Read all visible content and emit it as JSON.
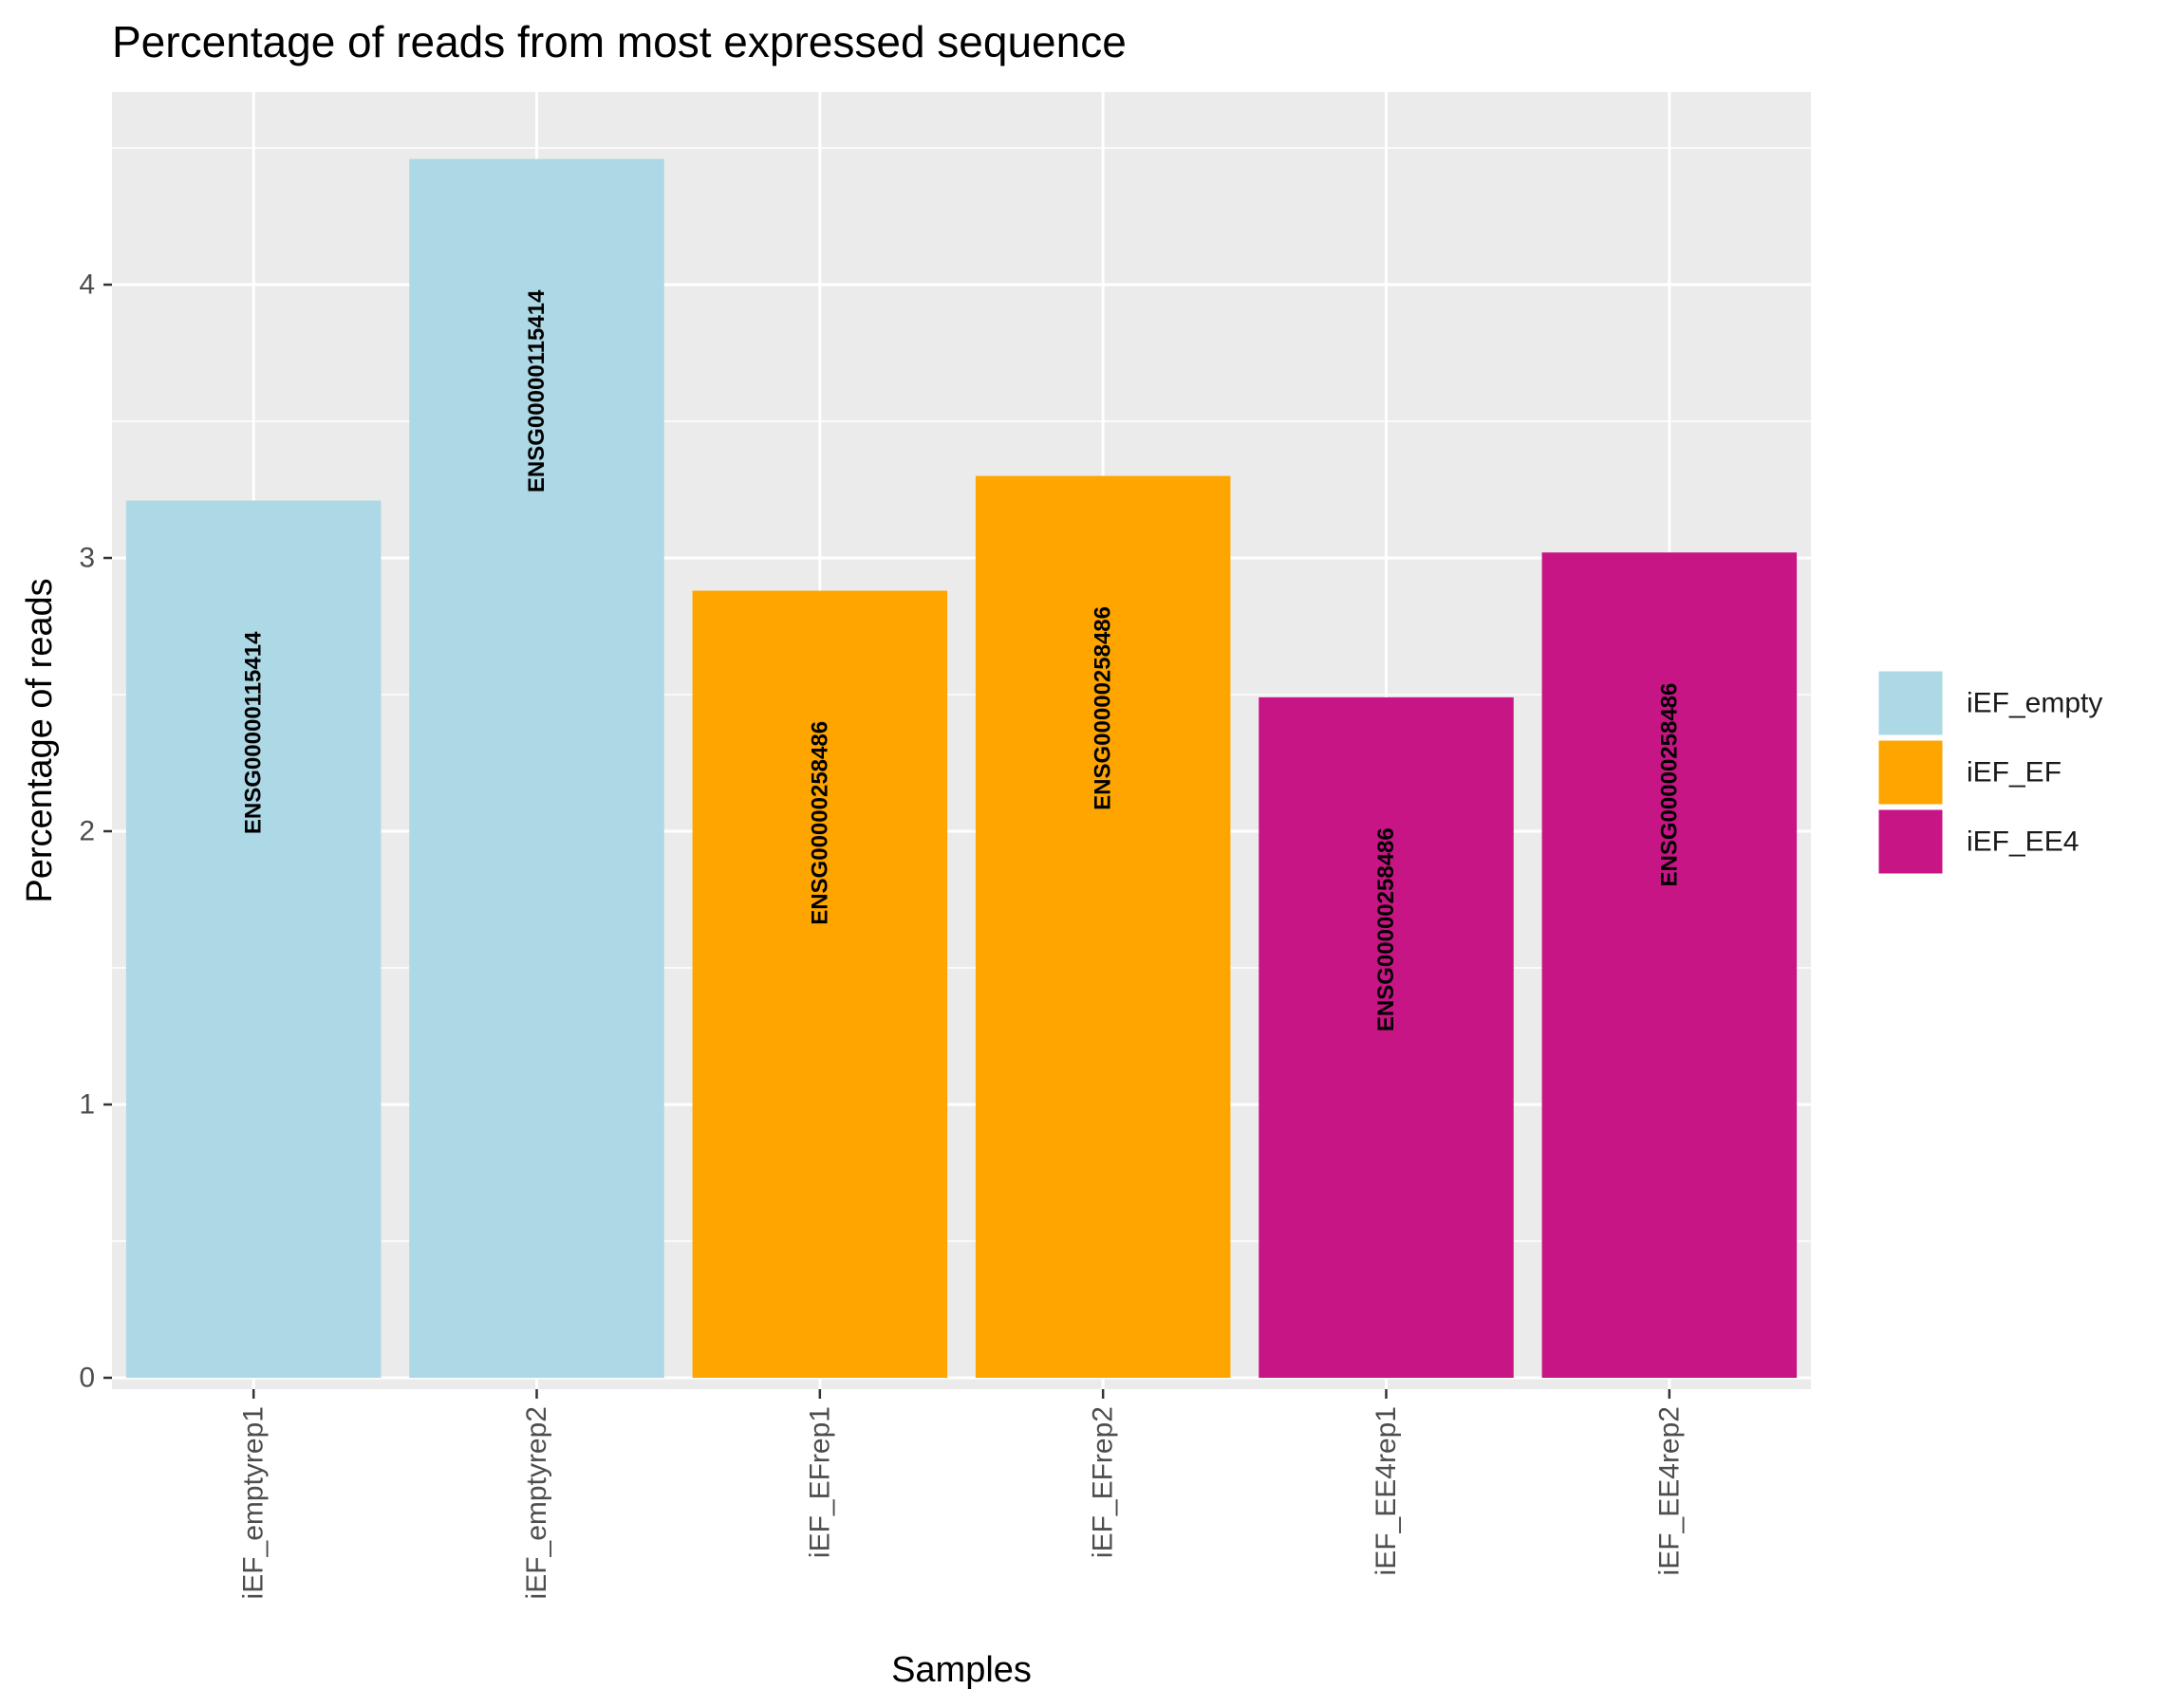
{
  "chart_data": {
    "type": "bar",
    "title": "Percentage of reads from most expressed sequence",
    "xlabel": "Samples",
    "ylabel": "Percentage of reads",
    "ylim": [
      0,
      4.68
    ],
    "yticks": [
      0,
      1,
      2,
      3,
      4
    ],
    "grid": true,
    "legend_position": "right",
    "categories": [
      "iEF_emptyrep1",
      "iEF_emptyrep2",
      "iEF_EFrep1",
      "iEF_EFrep2",
      "iEF_EE4rep1",
      "iEF_EE4rep2"
    ],
    "values": [
      3.21,
      4.46,
      2.88,
      3.3,
      2.49,
      3.02
    ],
    "bar_labels": [
      "ENSG00000115414",
      "ENSG00000115414",
      "ENSG00000258486",
      "ENSG00000258486",
      "ENSG00000258486",
      "ENSG00000258486"
    ],
    "groups": [
      "iEF_empty",
      "iEF_empty",
      "iEF_EF",
      "iEF_EF",
      "iEF_EE4",
      "iEF_EE4"
    ],
    "legend": [
      {
        "name": "iEF_empty",
        "color": "#ADD8E6"
      },
      {
        "name": "iEF_EF",
        "color": "#FFA500"
      },
      {
        "name": "iEF_EE4",
        "color": "#C71585"
      }
    ],
    "panel_background": "#EBEBEB"
  }
}
